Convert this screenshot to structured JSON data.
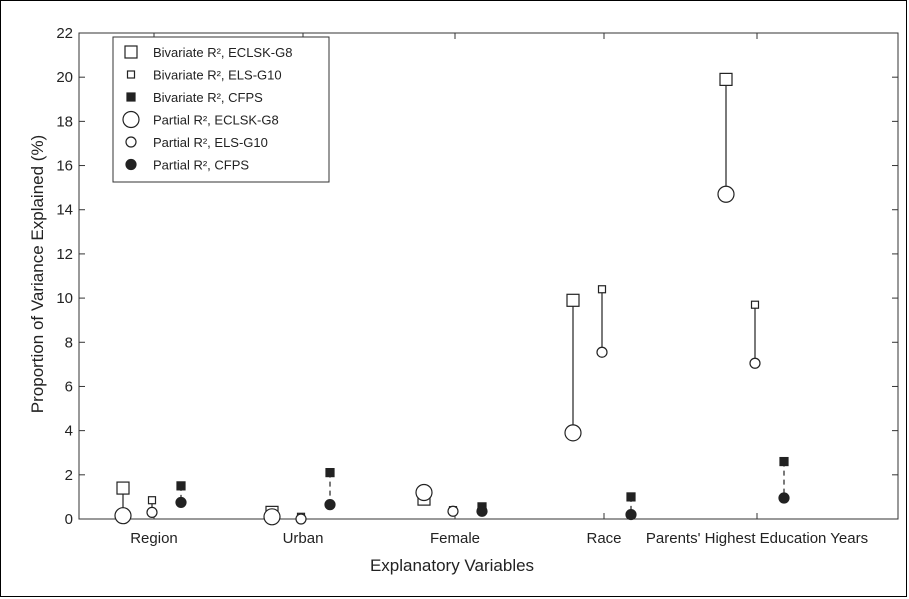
{
  "chart_data": {
    "type": "scatter",
    "xlabel": "Explanatory Variables",
    "ylabel": "Proportion of Variance Explained (%)",
    "ylim": [
      0,
      22
    ],
    "yticks": [
      0,
      2,
      4,
      6,
      8,
      10,
      12,
      14,
      16,
      18,
      20,
      22
    ],
    "categories": [
      "Region",
      "Urban",
      "Female",
      "Race",
      "Parents' Highest Education Years"
    ],
    "grid": false,
    "legend_position": "top-left",
    "series": [
      {
        "name": "Bivariate R², ECLSK-G8",
        "values": [
          1.4,
          0.3,
          0.9,
          9.9,
          19.9
        ]
      },
      {
        "name": "Bivariate R², ELS-G10",
        "values": [
          0.85,
          0.1,
          0.4,
          10.4,
          9.7
        ]
      },
      {
        "name": "Bivariate R², CFPS",
        "values": [
          1.5,
          2.1,
          0.55,
          1.0,
          2.6
        ]
      },
      {
        "name": "Partial R², ECLSK-G8",
        "values": [
          0.15,
          0.1,
          1.2,
          3.9,
          14.7
        ]
      },
      {
        "name": "Partial R², ELS-G10",
        "values": [
          0.3,
          0.0,
          0.35,
          7.55,
          7.05
        ]
      },
      {
        "name": "Partial R², CFPS",
        "values": [
          0.75,
          0.65,
          0.35,
          0.2,
          0.95
        ]
      }
    ]
  }
}
